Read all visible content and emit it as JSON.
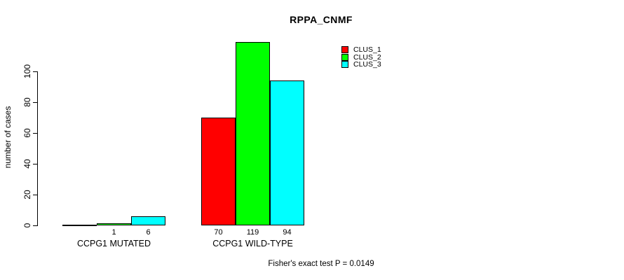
{
  "chart_data": {
    "type": "bar",
    "title": "RPPA_CNMF",
    "xlabel": "",
    "ylabel": "number of cases",
    "categories": [
      "CCPG1 MUTATED",
      "CCPG1 WILD-TYPE"
    ],
    "series": [
      {
        "name": "CLUS_1",
        "color": "#ff0000",
        "values": [
          0,
          70
        ]
      },
      {
        "name": "CLUS_2",
        "color": "#00ff00",
        "values": [
          1,
          119
        ]
      },
      {
        "name": "CLUS_3",
        "color": "#00ffff",
        "values": [
          6,
          94
        ]
      }
    ],
    "bar_value_labels": [
      [
        "",
        "1",
        "6"
      ],
      [
        "70",
        "119",
        "94"
      ]
    ],
    "yticks": [
      0,
      20,
      40,
      60,
      80,
      100
    ],
    "ylim": [
      0,
      100
    ],
    "grid": false,
    "legend_position": "top-right",
    "annotation": "Fisher's exact test P = 0.0149",
    "colors": {
      "background": "#ffffff",
      "axis": "#000000",
      "text": "#000000"
    }
  }
}
